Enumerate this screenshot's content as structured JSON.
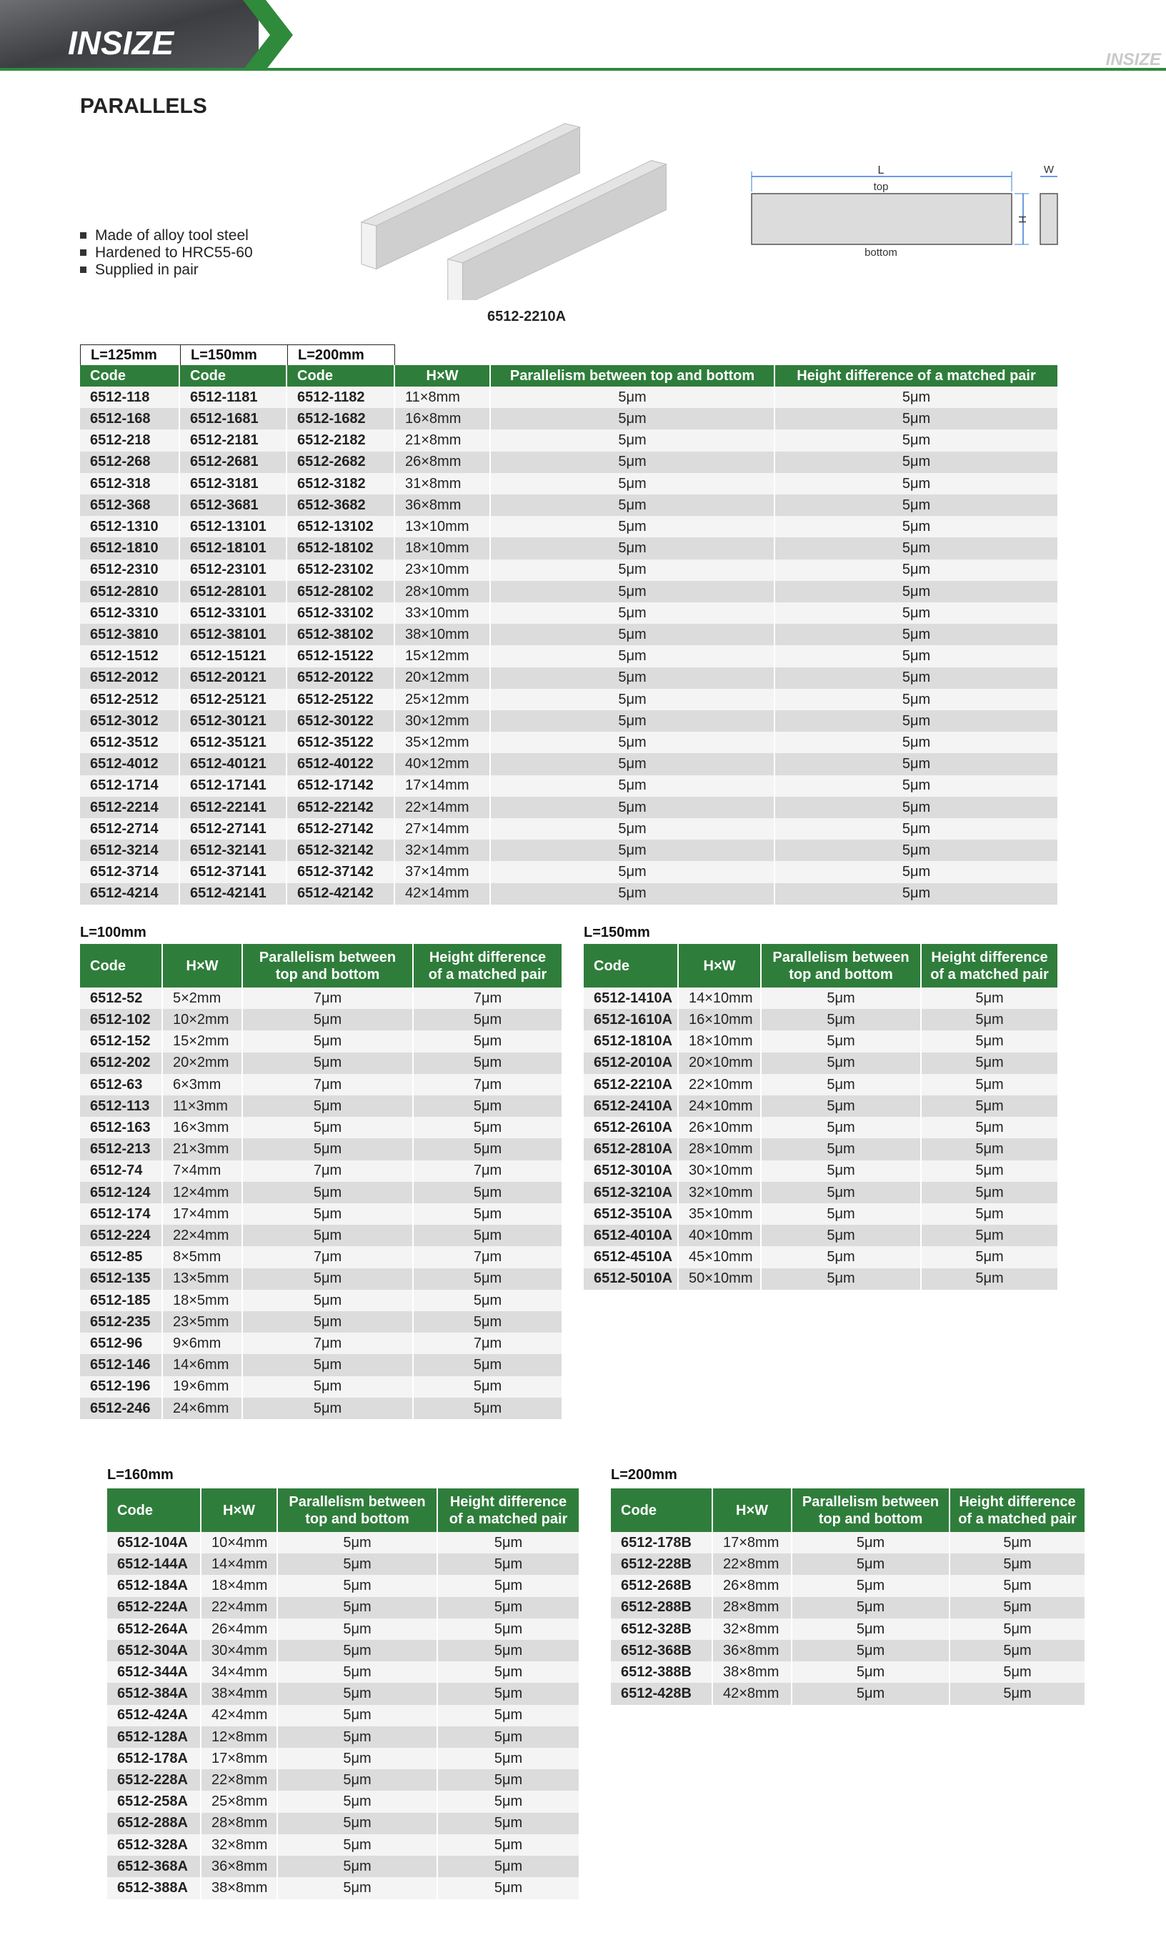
{
  "header": {
    "logo": "INSIZE",
    "logo_small": "INSIZE"
  },
  "title": "PARALLELS",
  "features": [
    "Made of alloy tool steel",
    "Hardened to HRC55-60",
    "Supplied in pair"
  ],
  "image_caption": "6512-2210A",
  "diagram": {
    "length": "L",
    "top": "top",
    "bottom": "bottom",
    "height": "H",
    "width": "W"
  },
  "tables": [
    {
      "length_labels": [
        "L=125mm",
        "L=150mm",
        "L=200mm"
      ],
      "columns": [
        "Code",
        "Code",
        "Code",
        "H×W",
        "Parallelism between top and bottom",
        "Height difference of a matched pair"
      ],
      "rows": [
        [
          "6512-118",
          "6512-1181",
          "6512-1182",
          "11×8mm",
          "5μm",
          "5μm"
        ],
        [
          "6512-168",
          "6512-1681",
          "6512-1682",
          "16×8mm",
          "5μm",
          "5μm"
        ],
        [
          "6512-218",
          "6512-2181",
          "6512-2182",
          "21×8mm",
          "5μm",
          "5μm"
        ],
        [
          "6512-268",
          "6512-2681",
          "6512-2682",
          "26×8mm",
          "5μm",
          "5μm"
        ],
        [
          "6512-318",
          "6512-3181",
          "6512-3182",
          "31×8mm",
          "5μm",
          "5μm"
        ],
        [
          "6512-368",
          "6512-3681",
          "6512-3682",
          "36×8mm",
          "5μm",
          "5μm"
        ],
        [
          "6512-1310",
          "6512-13101",
          "6512-13102",
          "13×10mm",
          "5μm",
          "5μm"
        ],
        [
          "6512-1810",
          "6512-18101",
          "6512-18102",
          "18×10mm",
          "5μm",
          "5μm"
        ],
        [
          "6512-2310",
          "6512-23101",
          "6512-23102",
          "23×10mm",
          "5μm",
          "5μm"
        ],
        [
          "6512-2810",
          "6512-28101",
          "6512-28102",
          "28×10mm",
          "5μm",
          "5μm"
        ],
        [
          "6512-3310",
          "6512-33101",
          "6512-33102",
          "33×10mm",
          "5μm",
          "5μm"
        ],
        [
          "6512-3810",
          "6512-38101",
          "6512-38102",
          "38×10mm",
          "5μm",
          "5μm"
        ],
        [
          "6512-1512",
          "6512-15121",
          "6512-15122",
          "15×12mm",
          "5μm",
          "5μm"
        ],
        [
          "6512-2012",
          "6512-20121",
          "6512-20122",
          "20×12mm",
          "5μm",
          "5μm"
        ],
        [
          "6512-2512",
          "6512-25121",
          "6512-25122",
          "25×12mm",
          "5μm",
          "5μm"
        ],
        [
          "6512-3012",
          "6512-30121",
          "6512-30122",
          "30×12mm",
          "5μm",
          "5μm"
        ],
        [
          "6512-3512",
          "6512-35121",
          "6512-35122",
          "35×12mm",
          "5μm",
          "5μm"
        ],
        [
          "6512-4012",
          "6512-40121",
          "6512-40122",
          "40×12mm",
          "5μm",
          "5μm"
        ],
        [
          "6512-1714",
          "6512-17141",
          "6512-17142",
          "17×14mm",
          "5μm",
          "5μm"
        ],
        [
          "6512-2214",
          "6512-22141",
          "6512-22142",
          "22×14mm",
          "5μm",
          "5μm"
        ],
        [
          "6512-2714",
          "6512-27141",
          "6512-27142",
          "27×14mm",
          "5μm",
          "5μm"
        ],
        [
          "6512-3214",
          "6512-32141",
          "6512-32142",
          "32×14mm",
          "5μm",
          "5μm"
        ],
        [
          "6512-3714",
          "6512-37141",
          "6512-37142",
          "37×14mm",
          "5μm",
          "5μm"
        ],
        [
          "6512-4214",
          "6512-42141",
          "6512-42142",
          "42×14mm",
          "5μm",
          "5μm"
        ]
      ]
    },
    {
      "label": "L=100mm",
      "columns": [
        "Code",
        "H×W",
        [
          "Parallelism between",
          "top and bottom"
        ],
        [
          "Height difference",
          "of a matched pair"
        ]
      ],
      "rows": [
        [
          "6512-52",
          "5×2mm",
          "7μm",
          "7μm"
        ],
        [
          "6512-102",
          "10×2mm",
          "5μm",
          "5μm"
        ],
        [
          "6512-152",
          "15×2mm",
          "5μm",
          "5μm"
        ],
        [
          "6512-202",
          "20×2mm",
          "5μm",
          "5μm"
        ],
        [
          "6512-63",
          "6×3mm",
          "7μm",
          "7μm"
        ],
        [
          "6512-113",
          "11×3mm",
          "5μm",
          "5μm"
        ],
        [
          "6512-163",
          "16×3mm",
          "5μm",
          "5μm"
        ],
        [
          "6512-213",
          "21×3mm",
          "5μm",
          "5μm"
        ],
        [
          "6512-74",
          "7×4mm",
          "7μm",
          "7μm"
        ],
        [
          "6512-124",
          "12×4mm",
          "5μm",
          "5μm"
        ],
        [
          "6512-174",
          "17×4mm",
          "5μm",
          "5μm"
        ],
        [
          "6512-224",
          "22×4mm",
          "5μm",
          "5μm"
        ],
        [
          "6512-85",
          "8×5mm",
          "7μm",
          "7μm"
        ],
        [
          "6512-135",
          "13×5mm",
          "5μm",
          "5μm"
        ],
        [
          "6512-185",
          "18×5mm",
          "5μm",
          "5μm"
        ],
        [
          "6512-235",
          "23×5mm",
          "5μm",
          "5μm"
        ],
        [
          "6512-96",
          "9×6mm",
          "7μm",
          "7μm"
        ],
        [
          "6512-146",
          "14×6mm",
          "5μm",
          "5μm"
        ],
        [
          "6512-196",
          "19×6mm",
          "5μm",
          "5μm"
        ],
        [
          "6512-246",
          "24×6mm",
          "5μm",
          "5μm"
        ]
      ]
    },
    {
      "label": "L=150mm",
      "columns": [
        "Code",
        "H×W",
        [
          "Parallelism between",
          "top and bottom"
        ],
        [
          "Height difference",
          "of a matched pair"
        ]
      ],
      "rows": [
        [
          "6512-1410A",
          "14×10mm",
          "5μm",
          "5μm"
        ],
        [
          "6512-1610A",
          "16×10mm",
          "5μm",
          "5μm"
        ],
        [
          "6512-1810A",
          "18×10mm",
          "5μm",
          "5μm"
        ],
        [
          "6512-2010A",
          "20×10mm",
          "5μm",
          "5μm"
        ],
        [
          "6512-2210A",
          "22×10mm",
          "5μm",
          "5μm"
        ],
        [
          "6512-2410A",
          "24×10mm",
          "5μm",
          "5μm"
        ],
        [
          "6512-2610A",
          "26×10mm",
          "5μm",
          "5μm"
        ],
        [
          "6512-2810A",
          "28×10mm",
          "5μm",
          "5μm"
        ],
        [
          "6512-3010A",
          "30×10mm",
          "5μm",
          "5μm"
        ],
        [
          "6512-3210A",
          "32×10mm",
          "5μm",
          "5μm"
        ],
        [
          "6512-3510A",
          "35×10mm",
          "5μm",
          "5μm"
        ],
        [
          "6512-4010A",
          "40×10mm",
          "5μm",
          "5μm"
        ],
        [
          "6512-4510A",
          "45×10mm",
          "5μm",
          "5μm"
        ],
        [
          "6512-5010A",
          "50×10mm",
          "5μm",
          "5μm"
        ]
      ]
    },
    {
      "label": "L=160mm",
      "columns": [
        "Code",
        "H×W",
        [
          "Parallelism between",
          "top and bottom"
        ],
        [
          "Height difference",
          "of a matched pair"
        ]
      ],
      "rows": [
        [
          "6512-104A",
          "10×4mm",
          "5μm",
          "5μm"
        ],
        [
          "6512-144A",
          "14×4mm",
          "5μm",
          "5μm"
        ],
        [
          "6512-184A",
          "18×4mm",
          "5μm",
          "5μm"
        ],
        [
          "6512-224A",
          "22×4mm",
          "5μm",
          "5μm"
        ],
        [
          "6512-264A",
          "26×4mm",
          "5μm",
          "5μm"
        ],
        [
          "6512-304A",
          "30×4mm",
          "5μm",
          "5μm"
        ],
        [
          "6512-344A",
          "34×4mm",
          "5μm",
          "5μm"
        ],
        [
          "6512-384A",
          "38×4mm",
          "5μm",
          "5μm"
        ],
        [
          "6512-424A",
          "42×4mm",
          "5μm",
          "5μm"
        ],
        [
          "6512-128A",
          "12×8mm",
          "5μm",
          "5μm"
        ],
        [
          "6512-178A",
          "17×8mm",
          "5μm",
          "5μm"
        ],
        [
          "6512-228A",
          "22×8mm",
          "5μm",
          "5μm"
        ],
        [
          "6512-258A",
          "25×8mm",
          "5μm",
          "5μm"
        ],
        [
          "6512-288A",
          "28×8mm",
          "5μm",
          "5μm"
        ],
        [
          "6512-328A",
          "32×8mm",
          "5μm",
          "5μm"
        ],
        [
          "6512-368A",
          "36×8mm",
          "5μm",
          "5μm"
        ],
        [
          "6512-388A",
          "38×8mm",
          "5μm",
          "5μm"
        ]
      ]
    },
    {
      "label": "L=200mm",
      "columns": [
        "Code",
        "H×W",
        [
          "Parallelism between",
          "top and bottom"
        ],
        [
          "Height difference",
          "of a matched pair"
        ]
      ],
      "rows": [
        [
          "6512-178B",
          "17×8mm",
          "5μm",
          "5μm"
        ],
        [
          "6512-228B",
          "22×8mm",
          "5μm",
          "5μm"
        ],
        [
          "6512-268B",
          "26×8mm",
          "5μm",
          "5μm"
        ],
        [
          "6512-288B",
          "28×8mm",
          "5μm",
          "5μm"
        ],
        [
          "6512-328B",
          "32×8mm",
          "5μm",
          "5μm"
        ],
        [
          "6512-368B",
          "36×8mm",
          "5μm",
          "5μm"
        ],
        [
          "6512-388B",
          "38×8mm",
          "5μm",
          "5μm"
        ],
        [
          "6512-428B",
          "42×8mm",
          "5μm",
          "5μm"
        ]
      ]
    }
  ]
}
